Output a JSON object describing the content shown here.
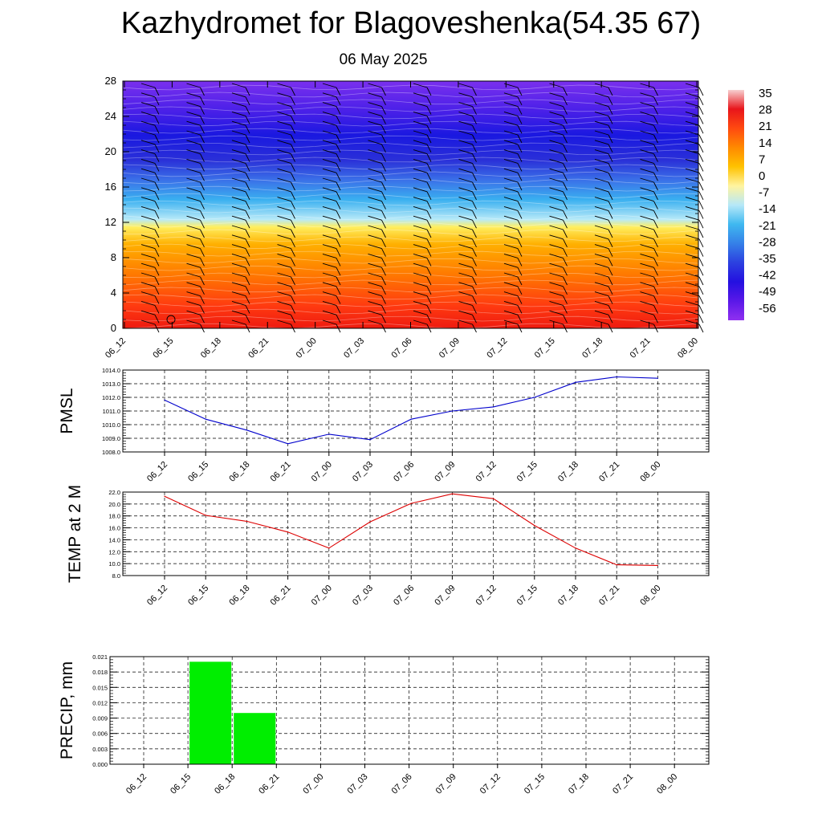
{
  "title": "Kazhydromet for Blagoveshenka(54.35 67)",
  "subtitle": "06 May 2025",
  "chart_data": [
    {
      "type": "heatmap",
      "name": "cross-section",
      "ylim": [
        0,
        28
      ],
      "yticks": [
        0,
        4,
        8,
        12,
        16,
        20,
        24,
        28
      ],
      "x_ticks": [
        "06_12",
        "06_15",
        "06_18",
        "06_21",
        "07_00",
        "07_03",
        "07_06",
        "07_09",
        "07_12",
        "07_15",
        "07_18",
        "07_21",
        "08_00"
      ],
      "colorbar_labels": [
        "35",
        "28",
        "21",
        "14",
        "7",
        "0",
        "-7",
        "-14",
        "-21",
        "-28",
        "-35",
        "-42",
        "-49",
        "-56"
      ],
      "colorbar_stops": [
        "#f7d0d0",
        "#e8151b",
        "#ff4a10",
        "#ff8a00",
        "#ffc200",
        "#fff4a0",
        "#b6e8f8",
        "#3fb8f0",
        "#3580e8",
        "#2c40e0",
        "#2410e0",
        "#5a18e8",
        "#9030f0"
      ]
    },
    {
      "type": "line",
      "name": "pmsl",
      "ylabel": "PMSL",
      "ylim": [
        1008.0,
        1014.0
      ],
      "yticks": [
        "1008.0",
        "1009.0",
        "1010.0",
        "1011.0",
        "1012.0",
        "1013.0",
        "1014.0"
      ],
      "categories": [
        "06_12",
        "06_15",
        "06_18",
        "06_21",
        "07_00",
        "07_03",
        "07_06",
        "07_09",
        "07_12",
        "07_15",
        "07_18",
        "07_21",
        "08_00"
      ],
      "values": [
        1011.8,
        1010.4,
        1009.6,
        1008.6,
        1009.3,
        1008.9,
        1010.4,
        1011.0,
        1011.3,
        1012.0,
        1013.1,
        1013.5,
        1013.4
      ],
      "color": "#0000cc"
    },
    {
      "type": "line",
      "name": "temp",
      "ylabel": "TEMP at 2 M",
      "ylim": [
        8.0,
        22.0
      ],
      "yticks": [
        "8.0",
        "10.0",
        "12.0",
        "14.0",
        "16.0",
        "18.0",
        "20.0",
        "22.0"
      ],
      "categories": [
        "06_12",
        "06_15",
        "06_18",
        "06_21",
        "07_00",
        "07_03",
        "07_06",
        "07_09",
        "07_12",
        "07_15",
        "07_18",
        "07_21",
        "08_00"
      ],
      "values": [
        21.3,
        18.1,
        17.1,
        15.3,
        12.6,
        17.0,
        20.1,
        21.7,
        20.9,
        16.4,
        12.6,
        9.8,
        9.7
      ],
      "color": "#dd0000"
    },
    {
      "type": "bar",
      "name": "precip",
      "ylabel": "PRECIP, mm",
      "ylim": [
        0,
        0.021
      ],
      "yticks": [
        "0.000",
        "0.003",
        "0.006",
        "0.009",
        "0.012",
        "0.015",
        "0.018",
        "0.021"
      ],
      "categories": [
        "06_12",
        "06_15",
        "06_18",
        "06_21",
        "07_00",
        "07_03",
        "07_06",
        "07_09",
        "07_12",
        "07_15",
        "07_18",
        "07_21",
        "08_00"
      ],
      "values": [
        0,
        0.02,
        0.01,
        0,
        0,
        0,
        0,
        0,
        0,
        0,
        0,
        0,
        0
      ],
      "color": "#00ee00"
    }
  ]
}
